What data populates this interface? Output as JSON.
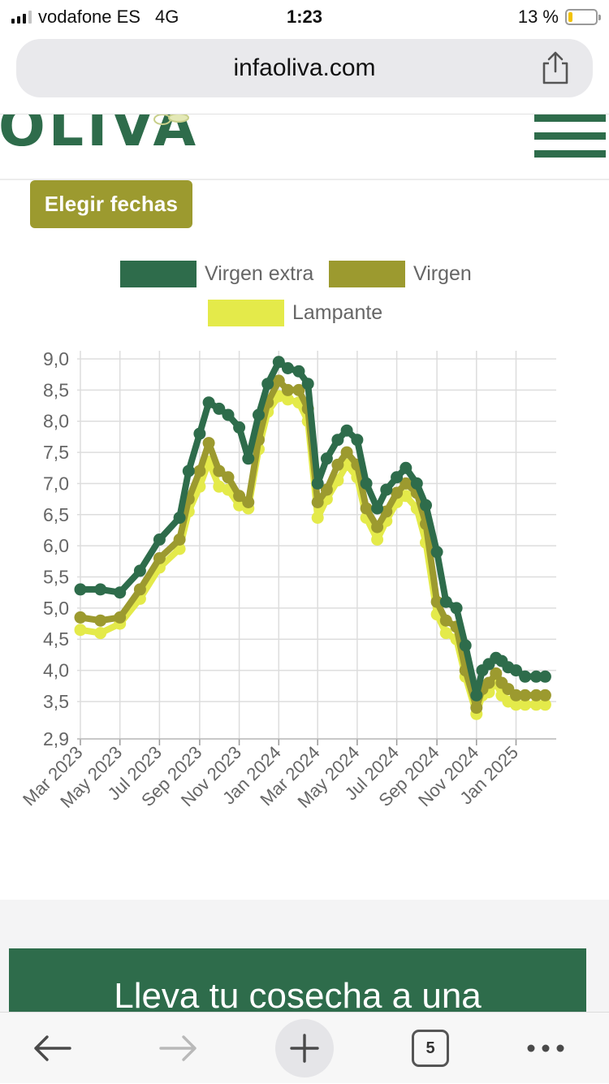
{
  "status_bar": {
    "carrier": "vodafone ES",
    "network": "4G",
    "time": "1:23",
    "battery": "13 %"
  },
  "browser": {
    "url": "infaoliva.com",
    "open_tabs": "5"
  },
  "site": {
    "logo_text": "OLIVA",
    "button_dates": "Elegir fechas",
    "promo_text": "Lleva tu cosecha a una"
  },
  "colors": {
    "brand_green": "#2e6c4b",
    "olive": "#9c9a2f",
    "lampante": "#e4ea4a",
    "tick_text": "#666666",
    "grid": "#dddddd"
  },
  "chart_data": {
    "type": "line",
    "ylim": [
      2.9,
      9.0
    ],
    "yticks": [
      "9,0",
      "8,5",
      "8,0",
      "7,5",
      "7,0",
      "6,5",
      "6,0",
      "5,5",
      "5,0",
      "4,5",
      "4,0",
      "3,5",
      "2,9"
    ],
    "ytick_values": [
      9.0,
      8.5,
      8.0,
      7.5,
      7.0,
      6.5,
      6.0,
      5.5,
      5.0,
      4.5,
      4.0,
      3.5,
      2.9
    ],
    "xticks": [
      "Mar 2023",
      "May 2023",
      "Jul 2023",
      "Sep 2023",
      "Nov 2023",
      "Jan 2024",
      "Mar 2024",
      "May 2024",
      "Jul 2024",
      "Sep 2024",
      "Nov 2024",
      "Jan 2025"
    ],
    "legend_placement": "top",
    "grid": true,
    "markers": true,
    "x": [
      "2023-03-01",
      "2023-04-01",
      "2023-05-01",
      "2023-06-01",
      "2023-07-01",
      "2023-08-01",
      "2023-08-15",
      "2023-09-01",
      "2023-09-15",
      "2023-10-01",
      "2023-10-15",
      "2023-11-01",
      "2023-11-15",
      "2023-12-01",
      "2023-12-15",
      "2024-01-01",
      "2024-01-15",
      "2024-02-01",
      "2024-02-15",
      "2024-03-01",
      "2024-03-15",
      "2024-04-01",
      "2024-04-15",
      "2024-05-01",
      "2024-05-15",
      "2024-06-01",
      "2024-06-15",
      "2024-07-01",
      "2024-07-15",
      "2024-08-01",
      "2024-08-15",
      "2024-09-01",
      "2024-09-15",
      "2024-10-01",
      "2024-10-15",
      "2024-11-01",
      "2024-11-10",
      "2024-11-20",
      "2024-12-01",
      "2024-12-10",
      "2024-12-20",
      "2025-01-01",
      "2025-01-15",
      "2025-02-01",
      "2025-02-15"
    ],
    "series": [
      {
        "name": "Virgen extra",
        "color": "#2e6c4b",
        "values": [
          5.3,
          5.3,
          5.25,
          5.6,
          6.1,
          6.45,
          7.2,
          7.8,
          8.3,
          8.2,
          8.1,
          7.9,
          7.4,
          8.1,
          8.6,
          8.95,
          8.85,
          8.8,
          8.6,
          7.0,
          7.4,
          7.7,
          7.85,
          7.7,
          7.0,
          6.6,
          6.9,
          7.1,
          7.25,
          7.0,
          6.65,
          5.9,
          5.1,
          5.0,
          4.4,
          3.6,
          4.0,
          4.1,
          4.2,
          4.15,
          4.05,
          4.0,
          3.9,
          3.9,
          3.9
        ]
      },
      {
        "name": "Virgen",
        "color": "#9c9a2f",
        "values": [
          4.85,
          4.8,
          4.85,
          5.3,
          5.8,
          6.1,
          6.75,
          7.2,
          7.65,
          7.2,
          7.1,
          6.8,
          6.7,
          7.7,
          8.3,
          8.65,
          8.5,
          8.5,
          8.2,
          6.7,
          6.9,
          7.3,
          7.5,
          7.3,
          6.6,
          6.3,
          6.55,
          6.85,
          7.0,
          6.85,
          6.35,
          5.1,
          4.8,
          4.7,
          4.0,
          3.4,
          3.7,
          3.8,
          3.95,
          3.8,
          3.7,
          3.6,
          3.6,
          3.6,
          3.6
        ]
      },
      {
        "name": "Lampante",
        "color": "#e4ea4a",
        "values": [
          4.65,
          4.6,
          4.75,
          5.15,
          5.65,
          5.95,
          6.55,
          6.95,
          7.35,
          6.95,
          6.9,
          6.65,
          6.6,
          7.55,
          8.15,
          8.4,
          8.35,
          8.3,
          8.0,
          6.45,
          6.75,
          7.05,
          7.3,
          7.1,
          6.45,
          6.1,
          6.4,
          6.7,
          6.8,
          6.6,
          6.05,
          4.9,
          4.6,
          4.5,
          3.9,
          3.3,
          3.6,
          3.65,
          3.8,
          3.6,
          3.5,
          3.45,
          3.45,
          3.45,
          3.45
        ]
      }
    ]
  }
}
